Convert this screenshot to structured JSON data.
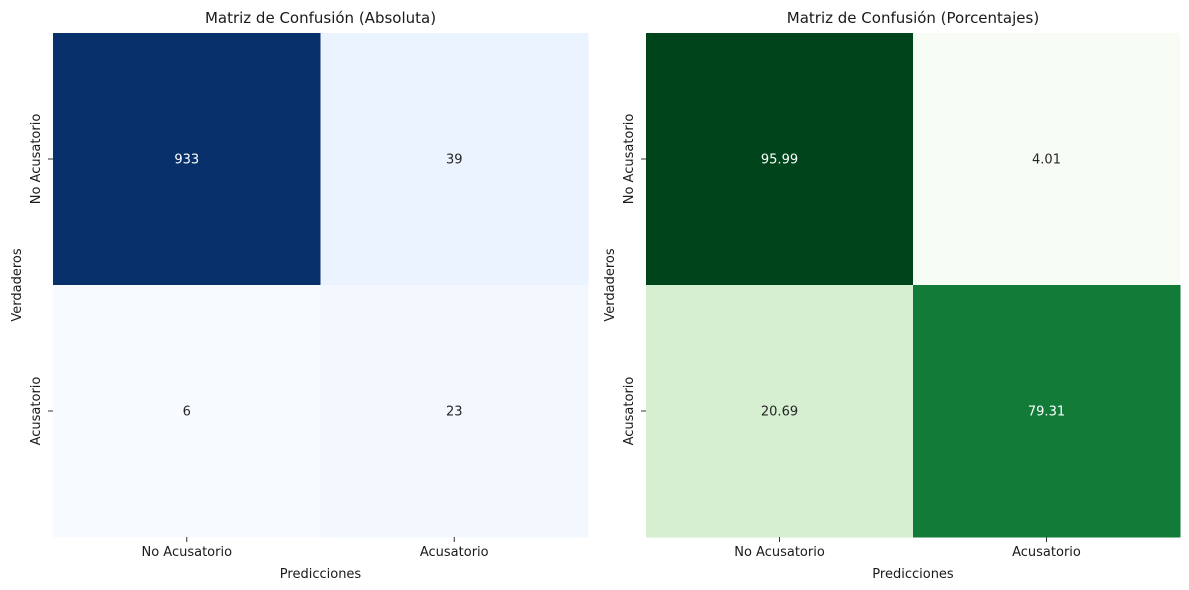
{
  "chart_data": [
    {
      "type": "heatmap",
      "title": "Matriz de Confusión (Absoluta)",
      "xlabel": "Predicciones",
      "ylabel": "Verdaderos",
      "x_categories": [
        "No Acusatorio",
        "Acusatorio"
      ],
      "y_categories": [
        "No Acusatorio",
        "Acusatorio"
      ],
      "values": [
        [
          933,
          39
        ],
        [
          6,
          23
        ]
      ],
      "cell_labels": [
        [
          "933",
          "39"
        ],
        [
          "6",
          "23"
        ]
      ],
      "colormap": "Blues",
      "colors": [
        [
          "#08306b",
          "#ebf3fe"
        ],
        [
          "#f7fbff",
          "#f3f8fe"
        ]
      ],
      "text_colors": [
        [
          "#ffffff",
          "#262626"
        ],
        [
          "#262626",
          "#262626"
        ]
      ],
      "colorbar": false,
      "grid": false
    },
    {
      "type": "heatmap",
      "title": "Matriz de Confusión (Porcentajes)",
      "xlabel": "Predicciones",
      "ylabel": "Verdaderos",
      "x_categories": [
        "No Acusatorio",
        "Acusatorio"
      ],
      "y_categories": [
        "No Acusatorio",
        "Acusatorio"
      ],
      "values": [
        [
          95.99,
          4.01
        ],
        [
          20.69,
          79.31
        ]
      ],
      "cell_labels": [
        [
          "95.99",
          "4.01"
        ],
        [
          "20.69",
          "79.31"
        ]
      ],
      "colormap": "Greens",
      "colors": [
        [
          "#00441b",
          "#f7fcf5"
        ],
        [
          "#d6efd0",
          "#127b38"
        ]
      ],
      "text_colors": [
        [
          "#ffffff",
          "#262626"
        ],
        [
          "#262626",
          "#ffffff"
        ]
      ],
      "colorbar": false,
      "grid": false
    }
  ]
}
